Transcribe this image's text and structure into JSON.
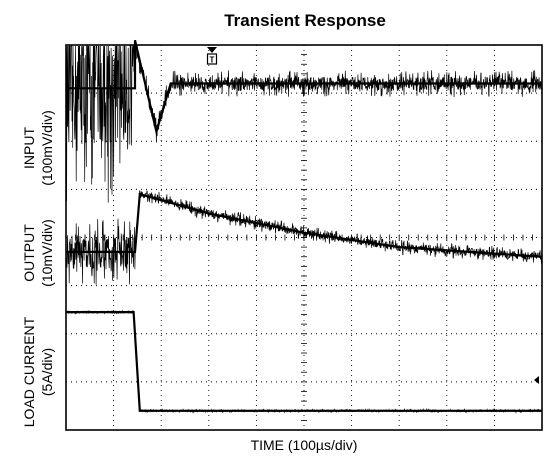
{
  "chart_data": {
    "type": "line",
    "title": "Transient Response",
    "xlabel": "TIME (100µs/div)",
    "ylabels": {
      "input": [
        "INPUT",
        "(100mV/div)"
      ],
      "output": [
        "OUTPUT",
        "(10mV/div)"
      ],
      "load": [
        "LOAD CURRENT",
        "(5A/div)"
      ]
    },
    "x_divisions": 10,
    "y_divisions": 8,
    "grid": true,
    "units": {
      "x": "div",
      "y": "div"
    },
    "trigger_marker_x": 1.45,
    "series": [
      {
        "name": "INPUT",
        "x": [
          0,
          1.45,
          1.45,
          1.9,
          2.2,
          10
        ],
        "y": [
          7.1,
          7.1,
          8.1,
          6.2,
          7.2,
          7.2
        ],
        "noise_before_step": 3.0,
        "noise_after_step": 0.35
      },
      {
        "name": "OUTPUT",
        "x": [
          0,
          1.45,
          1.55,
          3,
          5,
          7,
          10
        ],
        "y": [
          3.7,
          3.7,
          4.9,
          4.5,
          4.1,
          3.8,
          3.6
        ],
        "noise_before_step": 0.9,
        "noise_after_step": 0.2
      },
      {
        "name": "LOAD CURRENT",
        "x": [
          0,
          1.42,
          1.55,
          10
        ],
        "y": [
          2.45,
          2.45,
          0.4,
          0.4
        ],
        "noise_before_step": 0.04,
        "noise_after_step": 0.04
      }
    ]
  }
}
